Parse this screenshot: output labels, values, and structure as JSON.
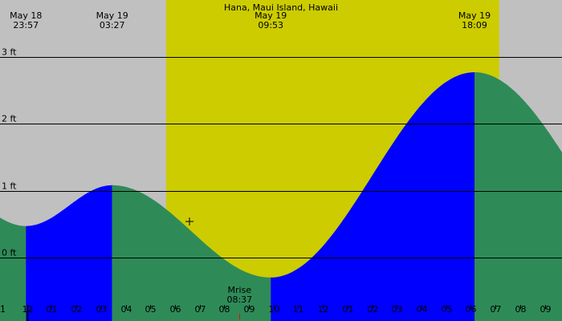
{
  "chart_data": {
    "type": "area",
    "title": "Hana, Maui Island, Hawaii",
    "xlabel": "",
    "ylabel": "",
    "y_unit": "ft",
    "ylim": [
      -0.95,
      3.85
    ],
    "xlim_hours": [
      -1.1,
      21.7
    ],
    "y_ticks": [
      {
        "value": 0,
        "label": "0 ft"
      },
      {
        "value": 1,
        "label": "1 ft"
      },
      {
        "value": 2,
        "label": "2 ft"
      },
      {
        "value": 3,
        "label": "3 ft"
      }
    ],
    "x_ticks": [
      {
        "hour": -1,
        "label": "1"
      },
      {
        "hour": 0,
        "label": "12"
      },
      {
        "hour": 1,
        "label": "01"
      },
      {
        "hour": 2,
        "label": "02"
      },
      {
        "hour": 3,
        "label": "03"
      },
      {
        "hour": 4,
        "label": "04"
      },
      {
        "hour": 5,
        "label": "05"
      },
      {
        "hour": 6,
        "label": "06"
      },
      {
        "hour": 7,
        "label": "07"
      },
      {
        "hour": 8,
        "label": "08"
      },
      {
        "hour": 9,
        "label": "09"
      },
      {
        "hour": 10,
        "label": "10"
      },
      {
        "hour": 11,
        "label": "11"
      },
      {
        "hour": 12,
        "label": "12"
      },
      {
        "hour": 13,
        "label": "01"
      },
      {
        "hour": 14,
        "label": "02"
      },
      {
        "hour": 15,
        "label": "03"
      },
      {
        "hour": 16,
        "label": "04"
      },
      {
        "hour": 17,
        "label": "05"
      },
      {
        "hour": 18,
        "label": "06"
      },
      {
        "hour": 19,
        "label": "07"
      },
      {
        "hour": 20,
        "label": "08"
      },
      {
        "hour": 21,
        "label": "09"
      }
    ],
    "tide_extremes": [
      {
        "type": "low",
        "date": "May 18",
        "time": "23:57",
        "hour": -0.05,
        "height": 0.47
      },
      {
        "type": "high",
        "date": "May 19",
        "time": "03:27",
        "hour": 3.45,
        "height": 1.08
      },
      {
        "type": "low",
        "date": "May 19",
        "time": "09:53",
        "hour": 9.883,
        "height": -0.3
      },
      {
        "type": "high",
        "date": "May 19",
        "time": "18:09",
        "hour": 18.15,
        "height": 2.77
      }
    ],
    "curve_endpoints": [
      {
        "hour": -1.1,
        "height": 0.55
      },
      {
        "hour": 21.7,
        "height": 1.45
      }
    ],
    "daylight": {
      "start_hour": 5.64,
      "end_hour": 19.15
    },
    "moonrise": {
      "label": "Mrise",
      "time": "08:37",
      "hour": 8.617
    },
    "colors": {
      "background": "#c0c0c0",
      "daylight": "#cccc00",
      "rising": "#0000ff",
      "falling": "#2e8b57",
      "gridline": "#000000",
      "moonrise_tick": "#ff0000"
    }
  }
}
